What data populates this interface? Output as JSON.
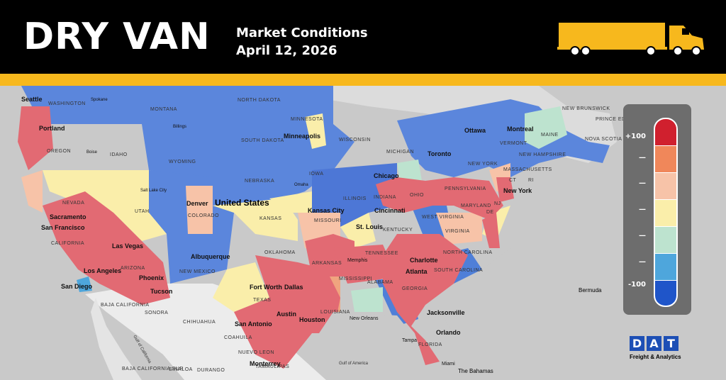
{
  "header": {
    "title": "DRY VAN",
    "subtitle_line1": "Market Conditions",
    "subtitle_line2": "April 12, 2026",
    "truck_icon_color": "#f7b81d"
  },
  "colors": {
    "header_bg": "#000000",
    "accent_stripe": "#f7b81d",
    "ocean": "#c9c9c9",
    "land_other": "#ececec"
  },
  "legend": {
    "top_label": "+100",
    "bottom_label": "-100",
    "tick_mark": "—",
    "scale": [
      "#d0202e",
      "#f0875a",
      "#f7c3a8",
      "#faeeaa",
      "#bde3cf",
      "#4ea6dc",
      "#1f55c9"
    ]
  },
  "brand": {
    "letters": [
      "D",
      "A",
      "T"
    ],
    "tagline": "Freight & Analytics"
  },
  "map": {
    "country_label": "United States",
    "states": [
      "WASHINGTON",
      "MONTANA",
      "NORTH DAKOTA",
      "MINNESOTA",
      "OREGON",
      "IDAHO",
      "WYOMING",
      "SOUTH DAKOTA",
      "WISCONSIN",
      "MICHIGAN",
      "NEVADA",
      "UTAH",
      "COLORADO",
      "NEBRASKA",
      "IOWA",
      "ILLINOIS",
      "INDIANA",
      "OHIO",
      "PENNSYLVANIA",
      "NEW YORK",
      "CALIFORNIA",
      "ARIZONA",
      "NEW MEXICO",
      "KANSAS",
      "MISSOURI",
      "KENTUCKY",
      "WEST VIRGINIA",
      "VIRGINIA",
      "OKLAHOMA",
      "ARKANSAS",
      "TENNESSEE",
      "NORTH CAROLINA",
      "SOUTH CAROLINA",
      "TEXAS",
      "LOUISIANA",
      "MISSISSIPPI",
      "ALABAMA",
      "GEORGIA",
      "FLORIDA",
      "MAINE",
      "VERMONT",
      "NEW HAMPSHIRE",
      "MASSACHUSETTS",
      "CT",
      "RI",
      "NJ",
      "MARYLAND",
      "DE",
      "NEW BRUNSWICK",
      "PRINCE EDWARD ISLAND",
      "NOVA SCOTIA",
      "BAJA CALIFORNIA",
      "BAJA CALIFORNIA SUR",
      "SONORA",
      "CHIHUAHUA",
      "COAHUILA",
      "NUEVO LEON",
      "TAMAULIPAS",
      "SINALOA",
      "DURANGO"
    ],
    "cities": [
      "Seattle",
      "Portland",
      "Spokane",
      "Boise",
      "Billings",
      "Minneapolis",
      "Salt Lake City",
      "Denver",
      "Sacramento",
      "San Francisco",
      "Las Vegas",
      "Los Angeles",
      "San Diego",
      "Phoenix",
      "Tucson",
      "Albuquerque",
      "Kansas City",
      "Omaha",
      "Chicago",
      "St. Louis",
      "Cincinnati",
      "Toronto",
      "Ottawa",
      "Montreal",
      "New York",
      "Charlotte",
      "Memphis",
      "Fort Worth",
      "Dallas",
      "Austin",
      "San Antonio",
      "Houston",
      "New Orleans",
      "Jacksonville",
      "Orlando",
      "Tampa",
      "Miami",
      "Monterrey",
      "Atlanta"
    ],
    "water_labels": [
      "Gulf of California",
      "Gulf of America",
      "Bermuda",
      "The Bahamas"
    ]
  }
}
